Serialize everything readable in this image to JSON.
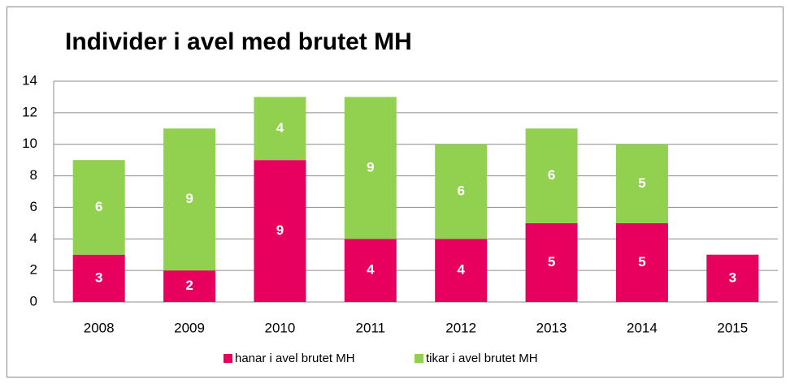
{
  "chart_data": {
    "type": "stacked_bar",
    "title": "Individer i avel med brutet MH",
    "categories": [
      "2008",
      "2009",
      "2010",
      "2011",
      "2012",
      "2013",
      "2014",
      "2015"
    ],
    "series": [
      {
        "name": "hanar i avel brutet MH",
        "color": "#e8005f",
        "values": [
          3,
          2,
          9,
          4,
          4,
          5,
          5,
          3
        ]
      },
      {
        "name": "tikar i avel brutet MH",
        "color": "#92d050",
        "values": [
          6,
          9,
          4,
          9,
          6,
          6,
          5,
          null
        ]
      }
    ],
    "ylim": [
      0,
      14
    ],
    "yticks": [
      0,
      2,
      4,
      6,
      8,
      10,
      12,
      14
    ],
    "grid": true,
    "legend": "bottom"
  }
}
